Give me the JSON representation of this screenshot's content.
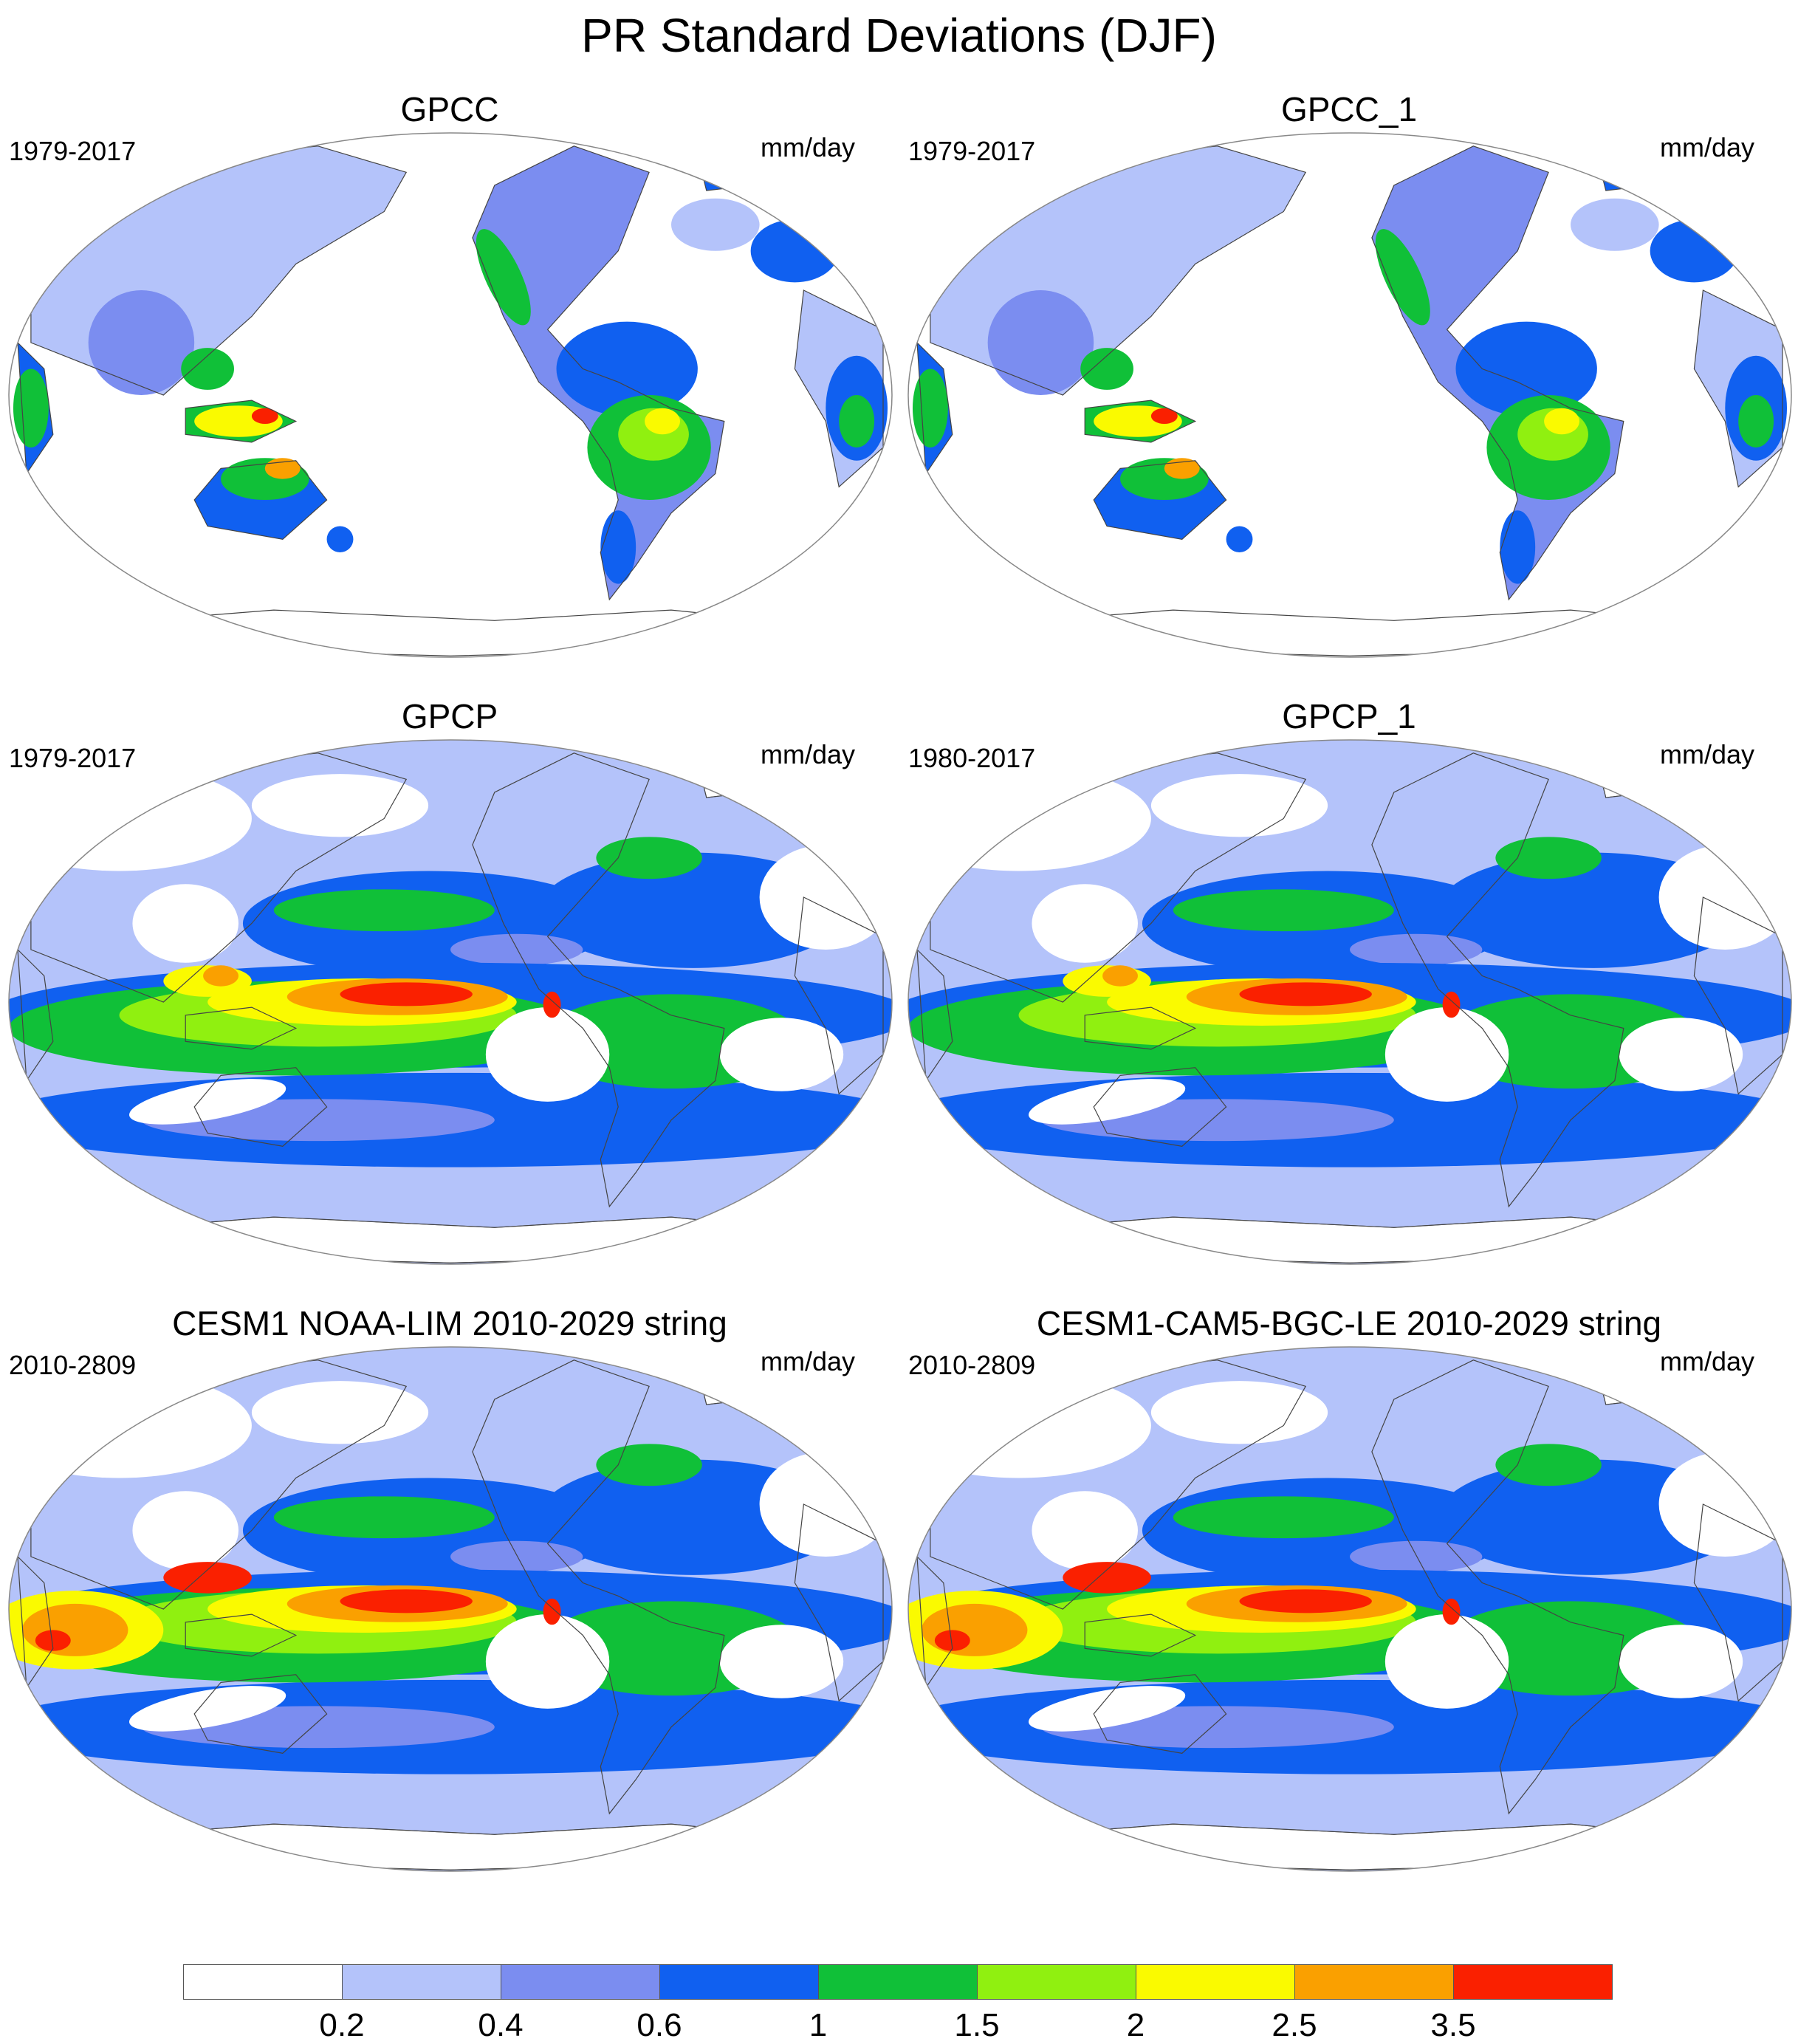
{
  "title": "PR Standard Deviations (DJF)",
  "panels": [
    {
      "title": "GPCC",
      "period": "1979-2017",
      "units": "mm/day"
    },
    {
      "title": "GPCC_1",
      "period": "1979-2017",
      "units": "mm/day"
    },
    {
      "title": "GPCP",
      "period": "1979-2017",
      "units": "mm/day"
    },
    {
      "title": "GPCP_1",
      "period": "1980-2017",
      "units": "mm/day"
    },
    {
      "title": "CESM1 NOAA-LIM 2010-2029 string",
      "period": "2010-2809",
      "units": "mm/day"
    },
    {
      "title": "CESM1-CAM5-BGC-LE 2010-2029 string",
      "period": "2010-2809",
      "units": "mm/day"
    }
  ],
  "colorbar": {
    "labels": [
      "0.2",
      "0.4",
      "0.6",
      "1",
      "1.5",
      "2",
      "2.5",
      "3.5"
    ],
    "colors": [
      "#ffffff",
      "#b4c3fa",
      "#7b8df0",
      "#1060f0",
      "#10c038",
      "#90f010",
      "#fafa00",
      "#faa000",
      "#fa2000"
    ]
  }
}
